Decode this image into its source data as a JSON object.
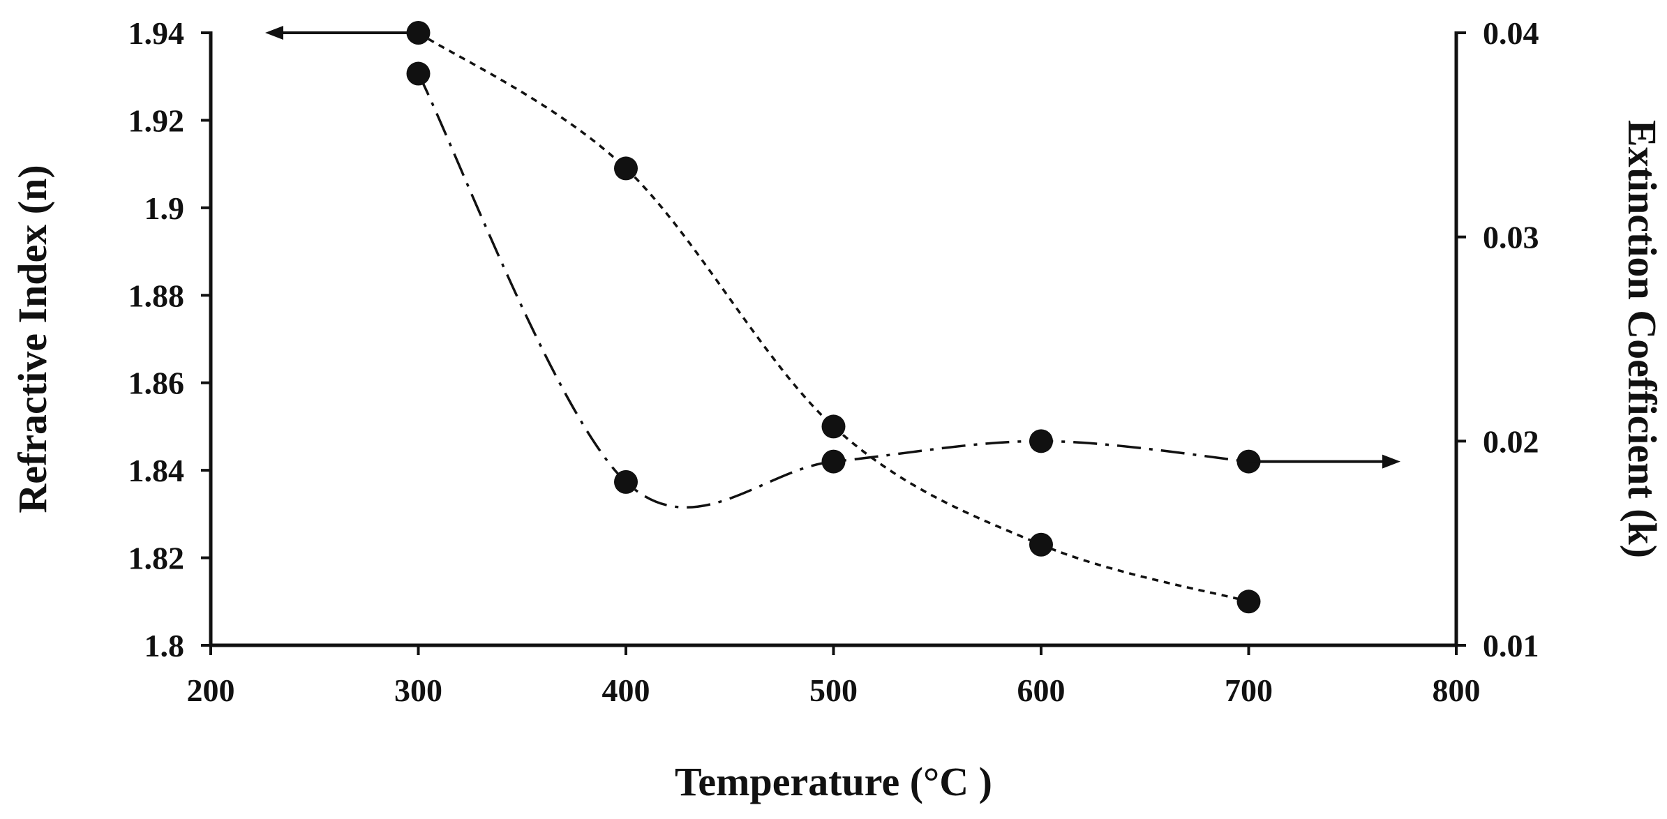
{
  "chart_data": {
    "type": "line",
    "title": "",
    "xlabel": "Temperature (°C )",
    "ylabel": "Refractive Index (n)",
    "y2label": "Extinction Coefficient (k)",
    "xlim": [
      200,
      800
    ],
    "ylim": [
      1.8,
      1.94
    ],
    "y2lim": [
      0.01,
      0.04
    ],
    "xticks": [
      "200",
      "300",
      "400",
      "500",
      "600",
      "700",
      "800"
    ],
    "yticks": [
      "1.8",
      "1.82",
      "1.84",
      "1.86",
      "1.88",
      "1.9",
      "1.92",
      "1.94"
    ],
    "y2ticks": [
      "0.01",
      "0.02",
      "0.03",
      "0.04"
    ],
    "grid": false,
    "legend": "none",
    "series": [
      {
        "axis": "left",
        "line_style": "dotted",
        "marker": "circle",
        "color": "#111111",
        "x": [
          300,
          400,
          500,
          600,
          700
        ],
        "values": [
          1.94,
          1.909,
          1.85,
          1.823,
          1.81
        ]
      },
      {
        "axis": "right",
        "line_style": "dash-dot",
        "marker": "circle",
        "color": "#111111",
        "x": [
          300,
          400,
          500,
          600,
          700
        ],
        "values": [
          0.038,
          0.018,
          0.019,
          0.02,
          0.019
        ]
      }
    ],
    "annotations": [
      {
        "type": "arrow",
        "direction": "left",
        "points_to": "left-axis",
        "attached_to": "series 1 at x=300"
      },
      {
        "type": "arrow",
        "direction": "right",
        "points_to": "right-axis",
        "attached_to": "series 2 at x=700"
      }
    ]
  }
}
